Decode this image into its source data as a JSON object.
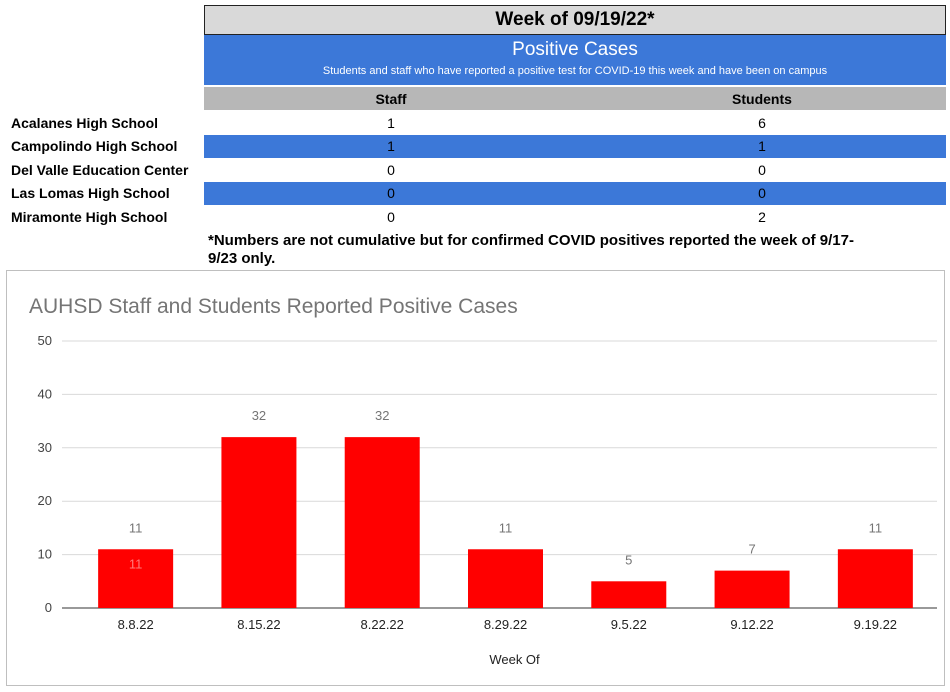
{
  "table": {
    "title": "Week of 09/19/22*",
    "banner_title": "Positive Cases",
    "banner_subtitle": "Students and staff who have reported a positive test for COVID-19 this week and have been on campus",
    "col_staff": "Staff",
    "col_students": "Students",
    "rows": [
      {
        "school": "Acalanes High School",
        "staff": "1",
        "students": "6"
      },
      {
        "school": "Campolindo High School",
        "staff": "1",
        "students": "1"
      },
      {
        "school": "Del Valle Education Center",
        "staff": "0",
        "students": "0"
      },
      {
        "school": "Las Lomas High School",
        "staff": "0",
        "students": "0"
      },
      {
        "school": "Miramonte High School",
        "staff": "0",
        "students": "2"
      }
    ],
    "note": "*Numbers are not cumulative but for confirmed COVID positives reported the week of 9/17-9/23 only.",
    "alt_color": "#3c78d8"
  },
  "chart_data": {
    "type": "bar",
    "title": "AUHSD Staff and Students Reported Positive Cases",
    "xlabel": "Week Of",
    "ylabel": "",
    "categories": [
      "8.8.22",
      "8.15.22",
      "8.22.22",
      "8.29.22",
      "9.5.22",
      "9.12.22",
      "9.19.22"
    ],
    "values": [
      11,
      32,
      32,
      11,
      5,
      7,
      11
    ],
    "ylim": [
      0,
      50
    ],
    "yticks": [
      0,
      10,
      20,
      30,
      40,
      50
    ],
    "inner_label_first_bar": "11",
    "grid": true,
    "bar_color": "#ff0000"
  }
}
